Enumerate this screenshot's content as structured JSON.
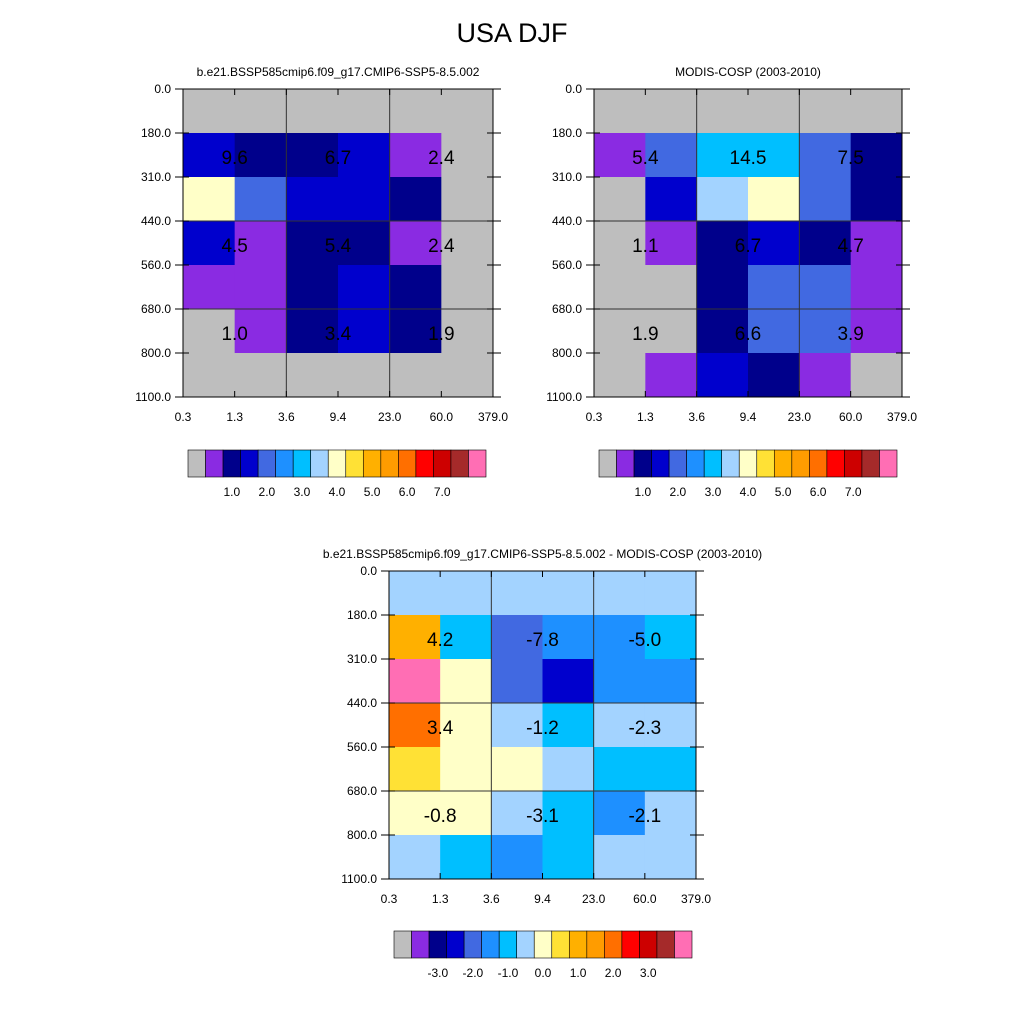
{
  "page": {
    "title": "USA DJF"
  },
  "palette": {
    "gray": "#BEBEBE",
    "purple": "#8A2BE2",
    "navy": "#00008B",
    "blue": "#0000CD",
    "royal": "#4169E1",
    "dodger": "#1E90FF",
    "sky": "#00BFFF",
    "light": "#A3D3FF",
    "cream": "#FFFFC8",
    "yellow": "#FFE135",
    "gold": "#FFB000",
    "orange": "#FF9C00",
    "darkorange": "#FF6F00",
    "red": "#FF0000",
    "crimson": "#CD0000",
    "brown": "#A52A2A",
    "pink": "#FF6EB4"
  },
  "chart_data": [
    {
      "type": "heatmap",
      "title": "b.e21.BSSP585cmip6.f09_g17.CMIP6-SSP5-8.5.002",
      "x_tick_labels": [
        "0.3",
        "1.3",
        "3.6",
        "9.4",
        "23.0",
        "60.0",
        "379.0"
      ],
      "y_tick_labels": [
        "0.0",
        "180.0",
        "310.0",
        "440.0",
        "560.0",
        "680.0",
        "800.0",
        "1100.0"
      ],
      "cells": [
        [
          "gray",
          "gray",
          "gray",
          "gray",
          "gray",
          "gray"
        ],
        [
          "blue",
          "navy",
          "navy",
          "blue",
          "purple",
          "gray"
        ],
        [
          "cream",
          "royal",
          "blue",
          "blue",
          "navy",
          "gray"
        ],
        [
          "blue",
          "purple",
          "navy",
          "navy",
          "purple",
          "gray"
        ],
        [
          "purple",
          "purple",
          "navy",
          "blue",
          "navy",
          "gray"
        ],
        [
          "gray",
          "purple",
          "navy",
          "blue",
          "navy",
          "gray"
        ],
        [
          "gray",
          "gray",
          "gray",
          "gray",
          "gray",
          "gray"
        ]
      ],
      "box_values": [
        [
          "9.6",
          "6.7",
          "2.4"
        ],
        [
          "4.5",
          "5.4",
          "2.4"
        ],
        [
          "1.0",
          "3.4",
          "1.9"
        ]
      ],
      "colorbar": {
        "colors": [
          "gray",
          "purple",
          "navy",
          "blue",
          "royal",
          "dodger",
          "sky",
          "light",
          "cream",
          "yellow",
          "gold",
          "orange",
          "darkorange",
          "red",
          "crimson",
          "brown",
          "pink"
        ],
        "labels": [
          "1.0",
          "2.0",
          "3.0",
          "4.0",
          "5.0",
          "6.0",
          "7.0"
        ]
      }
    },
    {
      "type": "heatmap",
      "title": "MODIS-COSP (2003-2010)",
      "x_tick_labels": [
        "0.3",
        "1.3",
        "3.6",
        "9.4",
        "23.0",
        "60.0",
        "379.0"
      ],
      "y_tick_labels": [
        "0.0",
        "180.0",
        "310.0",
        "440.0",
        "560.0",
        "680.0",
        "800.0",
        "1100.0"
      ],
      "cells": [
        [
          "gray",
          "gray",
          "gray",
          "gray",
          "gray",
          "gray"
        ],
        [
          "purple",
          "royal",
          "sky",
          "sky",
          "royal",
          "navy"
        ],
        [
          "gray",
          "blue",
          "light",
          "cream",
          "royal",
          "navy"
        ],
        [
          "gray",
          "purple",
          "navy",
          "blue",
          "navy",
          "purple"
        ],
        [
          "gray",
          "gray",
          "navy",
          "royal",
          "royal",
          "purple"
        ],
        [
          "gray",
          "gray",
          "navy",
          "royal",
          "royal",
          "purple"
        ],
        [
          "gray",
          "purple",
          "blue",
          "navy",
          "purple",
          "gray"
        ]
      ],
      "box_values": [
        [
          "5.4",
          "14.5",
          "7.5"
        ],
        [
          "1.1",
          "6.7",
          "4.7"
        ],
        [
          "1.9",
          "6.6",
          "3.9"
        ]
      ],
      "colorbar": {
        "colors": [
          "gray",
          "purple",
          "navy",
          "blue",
          "royal",
          "dodger",
          "sky",
          "light",
          "cream",
          "yellow",
          "gold",
          "orange",
          "darkorange",
          "red",
          "crimson",
          "brown",
          "pink"
        ],
        "labels": [
          "1.0",
          "2.0",
          "3.0",
          "4.0",
          "5.0",
          "6.0",
          "7.0"
        ]
      }
    },
    {
      "type": "heatmap",
      "title": "b.e21.BSSP585cmip6.f09_g17.CMIP6-SSP5-8.5.002 - MODIS-COSP (2003-2010)",
      "x_tick_labels": [
        "0.3",
        "1.3",
        "3.6",
        "9.4",
        "23.0",
        "60.0",
        "379.0"
      ],
      "y_tick_labels": [
        "0.0",
        "180.0",
        "310.0",
        "440.0",
        "560.0",
        "680.0",
        "800.0",
        "1100.0"
      ],
      "cells": [
        [
          "light",
          "light",
          "light",
          "light",
          "light",
          "light"
        ],
        [
          "gold",
          "sky",
          "royal",
          "dodger",
          "dodger",
          "sky"
        ],
        [
          "pink",
          "cream",
          "royal",
          "blue",
          "dodger",
          "dodger"
        ],
        [
          "darkorange",
          "cream",
          "light",
          "sky",
          "light",
          "light"
        ],
        [
          "yellow",
          "cream",
          "cream",
          "light",
          "sky",
          "sky"
        ],
        [
          "cream",
          "cream",
          "light",
          "sky",
          "dodger",
          "light"
        ],
        [
          "light",
          "sky",
          "dodger",
          "sky",
          "light",
          "light"
        ]
      ],
      "box_values": [
        [
          "4.2",
          "-7.8",
          "-5.0"
        ],
        [
          "3.4",
          "-1.2",
          "-2.3"
        ],
        [
          "-0.8",
          "-3.1",
          "-2.1"
        ]
      ],
      "colorbar": {
        "colors": [
          "gray",
          "purple",
          "navy",
          "blue",
          "royal",
          "dodger",
          "sky",
          "light",
          "cream",
          "yellow",
          "gold",
          "orange",
          "darkorange",
          "red",
          "crimson",
          "brown",
          "pink"
        ],
        "labels": [
          "-3.0",
          "-2.0",
          "-1.0",
          "0.0",
          "1.0",
          "2.0",
          "3.0"
        ]
      }
    }
  ]
}
